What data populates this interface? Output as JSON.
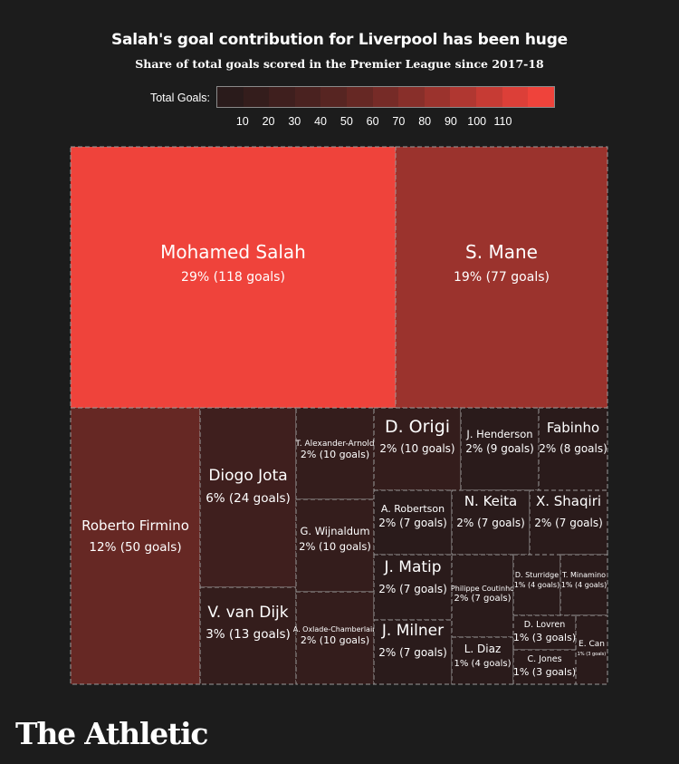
{
  "title": "Salah's goal contribution for Liverpool has been huge",
  "subtitle": "Share of total goals scored in the Premier League since 2017-18",
  "legend": {
    "label": "Total Goals:",
    "ticks": [
      "10",
      "20",
      "30",
      "40",
      "50",
      "60",
      "70",
      "80",
      "90",
      "100",
      "110"
    ],
    "colors": [
      "#2a1b1b",
      "#341d1c",
      "#3f1f1e",
      "#4a2220",
      "#572522",
      "#662824",
      "#762b27",
      "#882f2a",
      "#9b332d",
      "#b03731",
      "#c63b34",
      "#dc3f38",
      "#ef433b"
    ]
  },
  "brand": "The Athletic",
  "chart_data": {
    "type": "treemap",
    "title": "Salah's goal contribution for Liverpool has been huge",
    "subtitle": "Share of total goals scored in the Premier League since 2017-18",
    "color_scale_label": "Total Goals:",
    "color_scale_range": [
      0,
      120
    ],
    "items": [
      {
        "name": "Mohamed Salah",
        "label": "29% (118 goals)",
        "share_pct": 29,
        "goals": 118
      },
      {
        "name": "S. Mane",
        "label": "19% (77 goals)",
        "share_pct": 19,
        "goals": 77
      },
      {
        "name": "Roberto Firmino",
        "label": "12% (50 goals)",
        "share_pct": 12,
        "goals": 50
      },
      {
        "name": "Diogo Jota",
        "label": "6% (24 goals)",
        "share_pct": 6,
        "goals": 24
      },
      {
        "name": "V. van Dijk",
        "label": "3% (13 goals)",
        "share_pct": 3,
        "goals": 13
      },
      {
        "name": "T. Alexander-Arnold",
        "label": "2% (10 goals)",
        "share_pct": 2,
        "goals": 10
      },
      {
        "name": "G. Wijnaldum",
        "label": "2% (10 goals)",
        "share_pct": 2,
        "goals": 10
      },
      {
        "name": "A. Oxlade-Chamberlain",
        "label": "2% (10 goals)",
        "share_pct": 2,
        "goals": 10
      },
      {
        "name": "D. Origi",
        "label": "2% (10 goals)",
        "share_pct": 2,
        "goals": 10
      },
      {
        "name": "J. Henderson",
        "label": "2% (9 goals)",
        "share_pct": 2,
        "goals": 9
      },
      {
        "name": "Fabinho",
        "label": "2% (8 goals)",
        "share_pct": 2,
        "goals": 8
      },
      {
        "name": "A. Robertson",
        "label": "2% (7 goals)",
        "share_pct": 2,
        "goals": 7
      },
      {
        "name": "N. Keita",
        "label": "2% (7 goals)",
        "share_pct": 2,
        "goals": 7
      },
      {
        "name": "X. Shaqiri",
        "label": "2% (7 goals)",
        "share_pct": 2,
        "goals": 7
      },
      {
        "name": "J. Matip",
        "label": "2% (7 goals)",
        "share_pct": 2,
        "goals": 7
      },
      {
        "name": "J. Milner",
        "label": "2% (7 goals)",
        "share_pct": 2,
        "goals": 7
      },
      {
        "name": "Philippe Coutinho",
        "label": "2% (7 goals)",
        "share_pct": 2,
        "goals": 7
      },
      {
        "name": "L. Diaz",
        "label": "1% (4 goals)",
        "share_pct": 1,
        "goals": 4
      },
      {
        "name": "D. Sturridge",
        "label": "1% (4 goals)",
        "share_pct": 1,
        "goals": 4
      },
      {
        "name": "T. Minamino",
        "label": "1% (4 goals)",
        "share_pct": 1,
        "goals": 4
      },
      {
        "name": "D. Lovren",
        "label": "1% (3 goals)",
        "share_pct": 1,
        "goals": 3
      },
      {
        "name": "C. Jones",
        "label": "1% (3 goals)",
        "share_pct": 1,
        "goals": 3
      },
      {
        "name": "E. Can",
        "label": "1% (3 goals)",
        "share_pct": 1,
        "goals": 3
      }
    ]
  }
}
